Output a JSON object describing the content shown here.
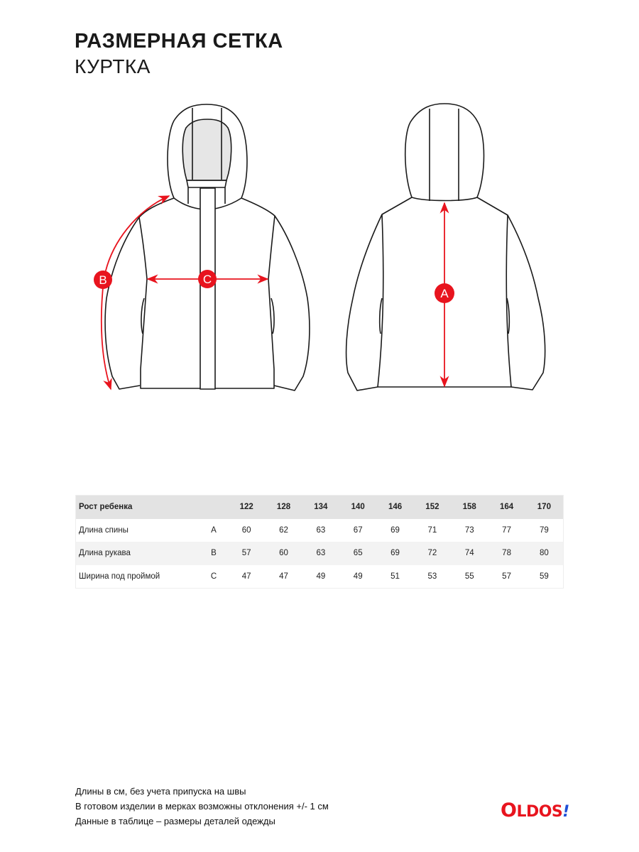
{
  "header": {
    "title": "РАЗМЕРНАЯ СЕТКА",
    "subtitle": "КУРТКА"
  },
  "diagram": {
    "markers": [
      "A",
      "B",
      "C"
    ],
    "accent_color": "#e8141e"
  },
  "table": {
    "header": {
      "label": "Рост ребенка",
      "letter": "",
      "values": [
        "122",
        "128",
        "134",
        "140",
        "146",
        "152",
        "158",
        "164",
        "170"
      ]
    },
    "rows": [
      {
        "label": "Длина спины",
        "letter": "A",
        "values": [
          "60",
          "62",
          "63",
          "67",
          "69",
          "71",
          "73",
          "77",
          "79"
        ]
      },
      {
        "label": "Длина рукава",
        "letter": "B",
        "values": [
          "57",
          "60",
          "63",
          "65",
          "69",
          "72",
          "74",
          "78",
          "80"
        ]
      },
      {
        "label": "Ширина под проймой",
        "letter": "C",
        "values": [
          "47",
          "47",
          "49",
          "49",
          "51",
          "53",
          "55",
          "57",
          "59"
        ]
      }
    ]
  },
  "notes": [
    "Длины в см, без учета припуска на швы",
    "В готовом изделии в мерках возможны отклонения +/- 1 см",
    "Данные в таблице – размеры деталей одежды"
  ],
  "logo": {
    "text": "OLDOS!",
    "main": "O",
    "rest": "LDOS",
    "bang": "!"
  }
}
